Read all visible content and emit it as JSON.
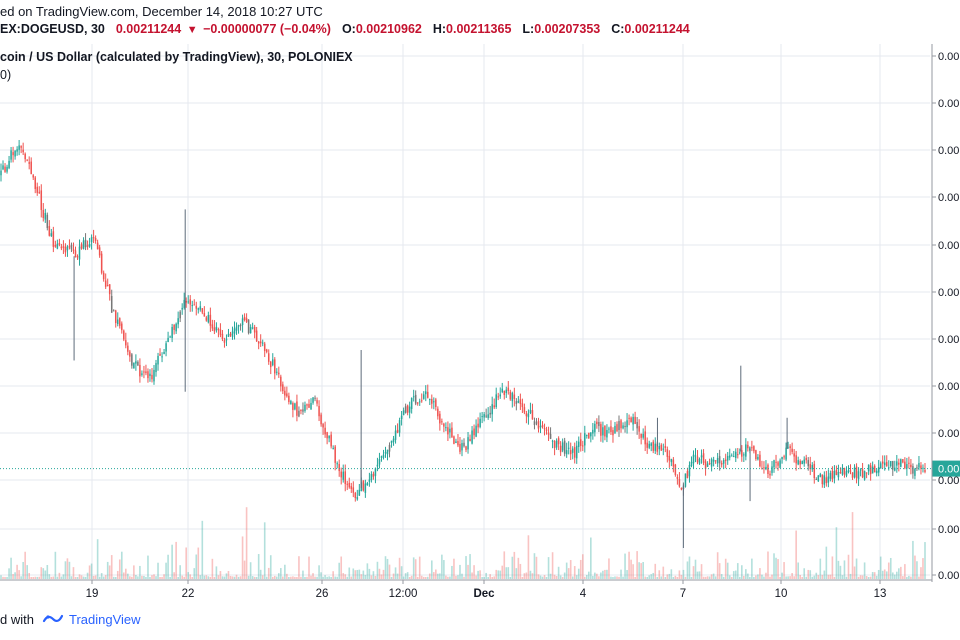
{
  "header": {
    "published": "ed on TradingView.com, December 14, 2018 10:27 UTC",
    "symbol": "EX:DOGEUSD, 30",
    "last": "0.00211244",
    "change": "−0.00000077 (−0.04%)",
    "o_label": "O:",
    "o_value": "0.00210962",
    "h_label": "H:",
    "h_value": "0.00211365",
    "l_label": "L:",
    "l_value": "0.00207353",
    "c_label": "C:",
    "c_value": "0.00211244"
  },
  "legend": {
    "title": "coin / US Dollar (calculated by TradingView), 30, POLONIEX",
    "volume_fragment": "0)"
  },
  "footer": {
    "prefix": "d with",
    "brand": "TradingView"
  },
  "colors": {
    "up": "#26a69a",
    "down": "#ef5350",
    "neutral": "#777777",
    "grid": "#e6e9ef",
    "price_line": "#26a69a",
    "header_red": "#c4122f"
  },
  "chart_data": {
    "type": "candlestick",
    "symbol": "DOGEUSD",
    "interval": "30",
    "exchange": "POLONIEX",
    "x_tick_labels": [
      "19",
      "22",
      "26",
      "12:00",
      "Dec",
      "4",
      "7",
      "10",
      "13"
    ],
    "y_tick_labels": [
      "0.00",
      "0.00",
      "0.00",
      "0.00",
      "0.00",
      "0.00",
      "0.00",
      "0.00",
      "0.00",
      "0.00",
      "0.00",
      "0.00"
    ],
    "last_price_label": "0.00",
    "last_price": 0.00211244,
    "grid": true,
    "trend_path": [
      [
        0.0,
        0.00268
      ],
      [
        0.02,
        0.00274
      ],
      [
        0.04,
        0.00264
      ],
      [
        0.055,
        0.00255
      ],
      [
        0.08,
        0.00252
      ],
      [
        0.1,
        0.00256
      ],
      [
        0.12,
        0.00242
      ],
      [
        0.14,
        0.00232
      ],
      [
        0.16,
        0.00228
      ],
      [
        0.18,
        0.00236
      ],
      [
        0.2,
        0.00244
      ],
      [
        0.22,
        0.00241
      ],
      [
        0.24,
        0.00236
      ],
      [
        0.26,
        0.0024
      ],
      [
        0.28,
        0.00236
      ],
      [
        0.3,
        0.00229
      ],
      [
        0.32,
        0.00222
      ],
      [
        0.34,
        0.00224
      ],
      [
        0.36,
        0.00214
      ],
      [
        0.38,
        0.00206
      ],
      [
        0.4,
        0.00209
      ],
      [
        0.42,
        0.00216
      ],
      [
        0.44,
        0.00223
      ],
      [
        0.46,
        0.00226
      ],
      [
        0.48,
        0.00219
      ],
      [
        0.5,
        0.00215
      ],
      [
        0.52,
        0.0022
      ],
      [
        0.54,
        0.00226
      ],
      [
        0.56,
        0.00224
      ],
      [
        0.58,
        0.0022
      ],
      [
        0.6,
        0.00216
      ],
      [
        0.62,
        0.00214
      ],
      [
        0.64,
        0.00219
      ],
      [
        0.66,
        0.00218
      ],
      [
        0.68,
        0.00221
      ],
      [
        0.7,
        0.00216
      ],
      [
        0.72,
        0.00215
      ],
      [
        0.735,
        0.00207
      ],
      [
        0.75,
        0.00213
      ],
      [
        0.77,
        0.00212
      ],
      [
        0.79,
        0.00214
      ],
      [
        0.81,
        0.00215
      ],
      [
        0.83,
        0.0021
      ],
      [
        0.85,
        0.00215
      ],
      [
        0.87,
        0.00212
      ],
      [
        0.89,
        0.00209
      ],
      [
        0.91,
        0.00211
      ],
      [
        0.93,
        0.0021
      ],
      [
        0.95,
        0.00212
      ],
      [
        0.97,
        0.00212
      ],
      [
        1.0,
        0.00211
      ]
    ],
    "spikes": [
      [
        0.2,
        0.00261
      ],
      [
        0.2,
        0.00226
      ],
      [
        0.39,
        0.00211
      ],
      [
        0.39,
        0.00234
      ],
      [
        0.738,
        0.00196
      ],
      [
        0.8,
        0.00231
      ],
      [
        0.81,
        0.00205
      ],
      [
        0.71,
        0.00221
      ],
      [
        0.85,
        0.00221
      ],
      [
        0.08,
        0.00232
      ]
    ],
    "y_range": [
      0.00196,
      0.00282
    ]
  }
}
